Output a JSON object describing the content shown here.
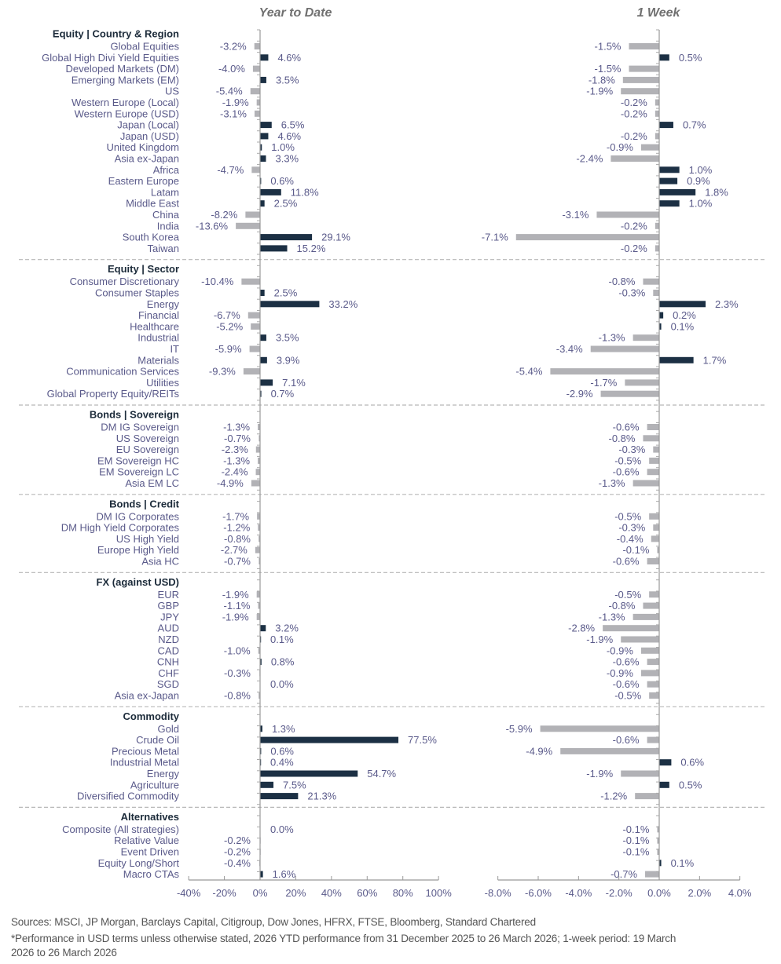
{
  "chart_data": {
    "type": "bar",
    "panels": [
      {
        "title": "Year to Date",
        "unit": "%",
        "xlim": [
          -40,
          100
        ],
        "ticks": [
          -40,
          -20,
          0,
          20,
          40,
          60,
          80,
          100
        ],
        "tick_labels": [
          "-40%",
          "-20%",
          "0%",
          "20%",
          "40%",
          "60%",
          "80%",
          "100%"
        ]
      },
      {
        "title": "1 Week",
        "unit": "%",
        "xlim": [
          -8,
          4
        ],
        "ticks": [
          -8,
          -6,
          -4,
          -2,
          0,
          2,
          4
        ],
        "tick_labels": [
          "-8.0%",
          "-6.0%",
          "-4.0%",
          "-2.0%",
          "0.0%",
          "2.0%",
          "4.0%"
        ]
      }
    ],
    "colors": {
      "positive": "#1c3044",
      "negative": "#b2b2b6",
      "label": "#5a5a8a",
      "header": "#1c2b3a",
      "axis": "#999999",
      "title": "#707070"
    },
    "sections": [
      {
        "name": "Equity | Country & Region",
        "items": [
          {
            "label": "Global Equities",
            "ytd": -3.2,
            "ytd_label": "-3.2%",
            "wk": -1.5,
            "wk_label": "-1.5%"
          },
          {
            "label": "Global High Divi Yield Equities",
            "ytd": 4.6,
            "ytd_label": "4.6%",
            "wk": 0.5,
            "wk_label": "0.5%"
          },
          {
            "label": "Developed Markets (DM)",
            "ytd": -4.0,
            "ytd_label": "-4.0%",
            "wk": -1.5,
            "wk_label": "-1.5%"
          },
          {
            "label": "Emerging Markets (EM)",
            "ytd": 3.5,
            "ytd_label": "3.5%",
            "wk": -1.8,
            "wk_label": "-1.8%"
          },
          {
            "label": "US",
            "ytd": -5.4,
            "ytd_label": "-5.4%",
            "wk": -1.9,
            "wk_label": "-1.9%"
          },
          {
            "label": "Western Europe (Local)",
            "ytd": -1.9,
            "ytd_label": "-1.9%",
            "wk": -0.2,
            "wk_label": "-0.2%"
          },
          {
            "label": "Western Europe (USD)",
            "ytd": -3.1,
            "ytd_label": "-3.1%",
            "wk": -0.2,
            "wk_label": "-0.2%"
          },
          {
            "label": "Japan (Local)",
            "ytd": 6.5,
            "ytd_label": "6.5%",
            "wk": 0.7,
            "wk_label": "0.7%"
          },
          {
            "label": "Japan (USD)",
            "ytd": 4.6,
            "ytd_label": "4.6%",
            "wk": -0.2,
            "wk_label": "-0.2%"
          },
          {
            "label": "United Kingdom",
            "ytd": 1.0,
            "ytd_label": "1.0%",
            "wk": -0.9,
            "wk_label": "-0.9%"
          },
          {
            "label": "Asia ex-Japan",
            "ytd": 3.3,
            "ytd_label": "3.3%",
            "wk": -2.4,
            "wk_label": "-2.4%"
          },
          {
            "label": "Africa",
            "ytd": -4.7,
            "ytd_label": "-4.7%",
            "wk": 1.0,
            "wk_label": "1.0%"
          },
          {
            "label": "Eastern Europe",
            "ytd": 0.6,
            "ytd_label": "0.6%",
            "wk": 0.9,
            "wk_label": "0.9%"
          },
          {
            "label": "Latam",
            "ytd": 11.8,
            "ytd_label": "11.8%",
            "wk": 1.8,
            "wk_label": "1.8%"
          },
          {
            "label": "Middle East",
            "ytd": 2.5,
            "ytd_label": "2.5%",
            "wk": 1.0,
            "wk_label": "1.0%"
          },
          {
            "label": "China",
            "ytd": -8.2,
            "ytd_label": "-8.2%",
            "wk": -3.1,
            "wk_label": "-3.1%"
          },
          {
            "label": "India",
            "ytd": -13.6,
            "ytd_label": "-13.6%",
            "wk": -0.2,
            "wk_label": "-0.2%"
          },
          {
            "label": "South Korea",
            "ytd": 29.1,
            "ytd_label": "29.1%",
            "wk": -7.1,
            "wk_label": "-7.1%"
          },
          {
            "label": "Taiwan",
            "ytd": 15.2,
            "ytd_label": "15.2%",
            "wk": -0.2,
            "wk_label": "-0.2%"
          }
        ]
      },
      {
        "name": "Equity | Sector",
        "items": [
          {
            "label": "Consumer Discretionary",
            "ytd": -10.4,
            "ytd_label": "-10.4%",
            "wk": -0.8,
            "wk_label": "-0.8%"
          },
          {
            "label": "Consumer Staples",
            "ytd": 2.5,
            "ytd_label": "2.5%",
            "wk": -0.3,
            "wk_label": "-0.3%"
          },
          {
            "label": "Energy",
            "ytd": 33.2,
            "ytd_label": "33.2%",
            "wk": 2.3,
            "wk_label": "2.3%"
          },
          {
            "label": "Financial",
            "ytd": -6.7,
            "ytd_label": "-6.7%",
            "wk": 0.2,
            "wk_label": "0.2%"
          },
          {
            "label": "Healthcare",
            "ytd": -5.2,
            "ytd_label": "-5.2%",
            "wk": 0.1,
            "wk_label": "0.1%"
          },
          {
            "label": "Industrial",
            "ytd": 3.5,
            "ytd_label": "3.5%",
            "wk": -1.3,
            "wk_label": "-1.3%"
          },
          {
            "label": "IT",
            "ytd": -5.9,
            "ytd_label": "-5.9%",
            "wk": -3.4,
            "wk_label": "-3.4%"
          },
          {
            "label": "Materials",
            "ytd": 3.9,
            "ytd_label": "3.9%",
            "wk": 1.7,
            "wk_label": "1.7%"
          },
          {
            "label": "Communication Services",
            "ytd": -9.3,
            "ytd_label": "-9.3%",
            "wk": -5.4,
            "wk_label": "-5.4%"
          },
          {
            "label": "Utilities",
            "ytd": 7.1,
            "ytd_label": "7.1%",
            "wk": -1.7,
            "wk_label": "-1.7%"
          },
          {
            "label": "Global Property Equity/REITs",
            "ytd": 0.7,
            "ytd_label": "0.7%",
            "wk": -2.9,
            "wk_label": "-2.9%"
          }
        ]
      },
      {
        "name": "Bonds | Sovereign",
        "items": [
          {
            "label": "DM IG Sovereign",
            "ytd": -1.3,
            "ytd_label": "-1.3%",
            "wk": -0.6,
            "wk_label": "-0.6%"
          },
          {
            "label": "US Sovereign",
            "ytd": -0.7,
            "ytd_label": "-0.7%",
            "wk": -0.8,
            "wk_label": "-0.8%"
          },
          {
            "label": "EU Sovereign",
            "ytd": -2.3,
            "ytd_label": "-2.3%",
            "wk": -0.3,
            "wk_label": "-0.3%"
          },
          {
            "label": "EM Sovereign HC",
            "ytd": -1.3,
            "ytd_label": "-1.3%",
            "wk": -0.5,
            "wk_label": "-0.5%"
          },
          {
            "label": "EM Sovereign LC",
            "ytd": -2.4,
            "ytd_label": "-2.4%",
            "wk": -0.6,
            "wk_label": "-0.6%"
          },
          {
            "label": "Asia EM LC",
            "ytd": -4.9,
            "ytd_label": "-4.9%",
            "wk": -1.3,
            "wk_label": "-1.3%"
          }
        ]
      },
      {
        "name": "Bonds | Credit",
        "items": [
          {
            "label": "DM IG Corporates",
            "ytd": -1.7,
            "ytd_label": "-1.7%",
            "wk": -0.5,
            "wk_label": "-0.5%"
          },
          {
            "label": "DM High Yield Corporates",
            "ytd": -1.2,
            "ytd_label": "-1.2%",
            "wk": -0.3,
            "wk_label": "-0.3%"
          },
          {
            "label": "US High Yield",
            "ytd": -0.8,
            "ytd_label": "-0.8%",
            "wk": -0.4,
            "wk_label": "-0.4%"
          },
          {
            "label": "Europe High Yield",
            "ytd": -2.7,
            "ytd_label": "-2.7%",
            "wk": -0.1,
            "wk_label": "-0.1%"
          },
          {
            "label": "Asia HC",
            "ytd": -0.7,
            "ytd_label": "-0.7%",
            "wk": -0.6,
            "wk_label": "-0.6%"
          }
        ]
      },
      {
        "name": "FX (against USD)",
        "items": [
          {
            "label": "EUR",
            "ytd": -1.9,
            "ytd_label": "-1.9%",
            "wk": -0.5,
            "wk_label": "-0.5%"
          },
          {
            "label": "GBP",
            "ytd": -1.1,
            "ytd_label": "-1.1%",
            "wk": -0.8,
            "wk_label": "-0.8%"
          },
          {
            "label": "JPY",
            "ytd": -1.9,
            "ytd_label": "-1.9%",
            "wk": -1.3,
            "wk_label": "-1.3%"
          },
          {
            "label": "AUD",
            "ytd": 3.2,
            "ytd_label": "3.2%",
            "wk": -2.8,
            "wk_label": "-2.8%"
          },
          {
            "label": "NZD",
            "ytd": 0.1,
            "ytd_label": "0.1%",
            "wk": -1.9,
            "wk_label": "-1.9%"
          },
          {
            "label": "CAD",
            "ytd": -1.0,
            "ytd_label": "-1.0%",
            "wk": -0.9,
            "wk_label": "-0.9%"
          },
          {
            "label": "CNH",
            "ytd": 0.8,
            "ytd_label": "0.8%",
            "wk": -0.6,
            "wk_label": "-0.6%"
          },
          {
            "label": "CHF",
            "ytd": -0.3,
            "ytd_label": "-0.3%",
            "wk": -0.9,
            "wk_label": "-0.9%"
          },
          {
            "label": "SGD",
            "ytd": 0.0,
            "ytd_label": "0.0%",
            "wk": -0.6,
            "wk_label": "-0.6%"
          },
          {
            "label": "Asia ex-Japan",
            "ytd": -0.8,
            "ytd_label": "-0.8%",
            "wk": -0.5,
            "wk_label": "-0.5%"
          }
        ]
      },
      {
        "name": "Commodity",
        "items": [
          {
            "label": "Gold",
            "ytd": 1.3,
            "ytd_label": "1.3%",
            "wk": -5.9,
            "wk_label": "-5.9%"
          },
          {
            "label": "Crude Oil",
            "ytd": 77.5,
            "ytd_label": "77.5%",
            "wk": -0.6,
            "wk_label": "-0.6%"
          },
          {
            "label": "Precious Metal",
            "ytd": 0.6,
            "ytd_label": "0.6%",
            "wk": -4.9,
            "wk_label": "-4.9%"
          },
          {
            "label": "Industrial Metal",
            "ytd": 0.4,
            "ytd_label": "0.4%",
            "wk": 0.6,
            "wk_label": "0.6%"
          },
          {
            "label": "Energy",
            "ytd": 54.7,
            "ytd_label": "54.7%",
            "wk": -1.9,
            "wk_label": "-1.9%"
          },
          {
            "label": "Agriculture",
            "ytd": 7.5,
            "ytd_label": "7.5%",
            "wk": 0.5,
            "wk_label": "0.5%"
          },
          {
            "label": "Diversified Commodity",
            "ytd": 21.3,
            "ytd_label": "21.3%",
            "wk": -1.2,
            "wk_label": "-1.2%"
          }
        ]
      },
      {
        "name": "Alternatives",
        "items": [
          {
            "label": "Composite (All strategies)",
            "ytd": 0.0,
            "ytd_label": "0.0%",
            "wk": -0.1,
            "wk_label": "-0.1%"
          },
          {
            "label": "Relative Value",
            "ytd": -0.2,
            "ytd_label": "-0.2%",
            "wk": -0.1,
            "wk_label": "-0.1%"
          },
          {
            "label": "Event Driven",
            "ytd": -0.2,
            "ytd_label": "-0.2%",
            "wk": -0.1,
            "wk_label": "-0.1%"
          },
          {
            "label": "Equity Long/Short",
            "ytd": -0.4,
            "ytd_label": "-0.4%",
            "wk": 0.1,
            "wk_label": "0.1%"
          },
          {
            "label": "Macro CTAs",
            "ytd": 1.6,
            "ytd_label": "1.6%",
            "wk": -0.7,
            "wk_label": "-0.7%"
          }
        ]
      }
    ]
  },
  "footer": {
    "sources": "Sources: MSCI, JP Morgan, Barclays Capital, Citigroup, Dow Jones, HFRX, FTSE, Bloomberg, Standard Chartered",
    "note_line1": "*Performance in USD terms unless otherwise stated, 2026 YTD performance from 31 December 2025 to 26 March 2026; 1-week period: 19 March",
    "note_line2": "2026 to 26 March 2026"
  }
}
